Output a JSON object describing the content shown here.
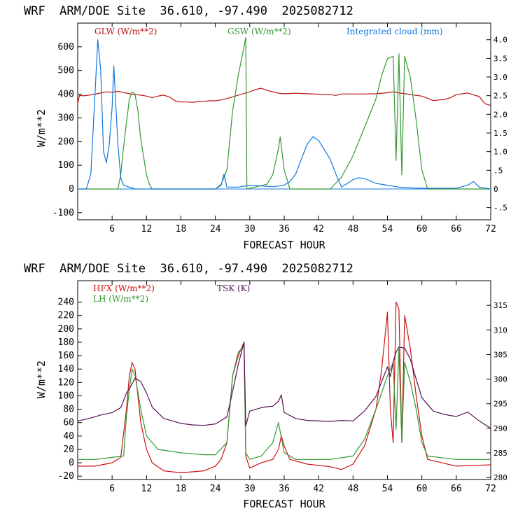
{
  "chart_data": [
    {
      "type": "line",
      "title": "WRF  ARM/DOE Site  36.610, -97.490  2025082712",
      "xlabel": "FORECAST HOUR",
      "ylabel": "W/m**2",
      "xlim": [
        0,
        72
      ],
      "ylim": [
        -130,
        700
      ],
      "y2lim": [
        -0.826,
        4.445
      ],
      "x_ticks": [
        6,
        12,
        18,
        24,
        30,
        36,
        42,
        48,
        54,
        60,
        66,
        72
      ],
      "y_ticks": [
        -100,
        0,
        100,
        200,
        300,
        400,
        500,
        600
      ],
      "y2_ticks": [
        -0.5,
        0,
        0.5,
        1.0,
        1.5,
        2.0,
        2.5,
        3.0,
        3.5,
        4.0
      ],
      "y2_tick_labels": [
        "-.5",
        "0",
        ".5",
        "1.0",
        "1.5",
        "2.0",
        "2.5",
        "3.0",
        "3.5",
        "4.0"
      ],
      "zero_line": 0,
      "series": [
        {
          "name": "GLW (W/m**2)",
          "color": "#bb1111",
          "axis": "left",
          "x": [
            0,
            0.3,
            1,
            2,
            3,
            4,
            5,
            6,
            7,
            8,
            9,
            10,
            11,
            12,
            13,
            14,
            15,
            16,
            17,
            18,
            19,
            20,
            21,
            22,
            23,
            24,
            25,
            26,
            27,
            28,
            29,
            30,
            31,
            32,
            33,
            34,
            35,
            36,
            38,
            40,
            42,
            44,
            45,
            46,
            48,
            50,
            52,
            54,
            55,
            56,
            57,
            58,
            60,
            62,
            64,
            65,
            66,
            68,
            70,
            71,
            72
          ],
          "y": [
            360,
            395,
            393,
            396,
            400,
            405,
            410,
            408,
            412,
            407,
            402,
            398,
            396,
            392,
            385,
            392,
            396,
            388,
            372,
            367,
            367,
            366,
            368,
            370,
            372,
            372,
            376,
            382,
            388,
            396,
            403,
            410,
            420,
            425,
            416,
            410,
            404,
            402,
            404,
            402,
            400,
            398,
            395,
            401,
            401,
            401,
            402,
            406,
            410,
            405,
            403,
            398,
            392,
            373,
            378,
            385,
            398,
            405,
            390,
            360,
            352
          ]
        },
        {
          "name": "GSW (W/m**2)",
          "color": "#339933",
          "axis": "left",
          "x": [
            0,
            7,
            7.5,
            8,
            9,
            9.5,
            10,
            10.5,
            11,
            12,
            12.5,
            13,
            24,
            25,
            26,
            27,
            28,
            29,
            29.3,
            29.5,
            33,
            34,
            35,
            35.3,
            36,
            37,
            44,
            46,
            48,
            50,
            52,
            53,
            54,
            55,
            55.5,
            56,
            56.5,
            57,
            58,
            59,
            60,
            61,
            72
          ],
          "y": [
            0,
            0,
            60,
            180,
            380,
            410,
            400,
            330,
            210,
            60,
            20,
            0,
            0,
            20,
            80,
            330,
            480,
            600,
            640,
            0,
            20,
            60,
            170,
            220,
            80,
            0,
            0,
            50,
            140,
            260,
            380,
            480,
            550,
            560,
            120,
            570,
            60,
            560,
            470,
            290,
            80,
            0,
            0
          ]
        },
        {
          "name": "Integrated cloud (mm)",
          "color": "#1177dd",
          "axis": "right",
          "x": [
            0,
            1.5,
            2.3,
            3,
            3.5,
            4,
            4.5,
            5,
            5.5,
            6,
            6.3,
            6.6,
            7,
            7.5,
            8,
            9,
            10,
            24,
            25,
            25.5,
            26,
            28,
            30,
            32,
            34,
            36,
            37,
            38,
            39,
            40,
            41,
            42,
            43,
            44,
            45,
            46,
            47,
            48,
            49,
            50,
            52,
            54,
            56,
            58,
            60,
            62,
            66,
            68,
            69,
            70,
            72
          ],
          "y": [
            0,
            0,
            0.4,
            2.5,
            4.0,
            3.2,
            1.0,
            0.7,
            1.2,
            2.2,
            3.3,
            2.4,
            1.2,
            0.3,
            0.1,
            0.05,
            0,
            0,
            0.1,
            0.4,
            0.05,
            0.05,
            0.1,
            0.08,
            0.06,
            0.1,
            0.2,
            0.4,
            0.8,
            1.2,
            1.4,
            1.3,
            1.05,
            0.8,
            0.4,
            0.05,
            0.15,
            0.25,
            0.3,
            0.28,
            0.15,
            0.1,
            0.05,
            0.03,
            0.02,
            0.02,
            0.02,
            0.1,
            0.2,
            0.05,
            0
          ]
        }
      ]
    },
    {
      "type": "line",
      "title": "WRF  ARM/DOE Site  36.610, -97.490  2025082712",
      "xlabel": "FORECAST HOUR",
      "ylabel": "W/m**2",
      "xlim": [
        0,
        72
      ],
      "ylim": [
        -25,
        272
      ],
      "y2lim": [
        279.6,
        320.0
      ],
      "x_ticks": [
        6,
        12,
        18,
        24,
        30,
        36,
        42,
        48,
        54,
        60,
        66,
        72
      ],
      "y_ticks": [
        -20,
        0,
        20,
        40,
        60,
        80,
        100,
        120,
        140,
        160,
        180,
        200,
        220,
        240
      ],
      "y2_ticks": [
        280,
        285,
        290,
        295,
        300,
        305,
        310,
        315
      ],
      "y2_tick_labels": [
        "280",
        "285",
        "290",
        "295",
        "300",
        "305",
        "310",
        "315"
      ],
      "series": [
        {
          "name": "HFX (W/m**2)",
          "color": "#cc1111",
          "axis": "left",
          "x": [
            0,
            3,
            6,
            7.5,
            8.5,
            9,
            9.5,
            10,
            10.5,
            11,
            12,
            13,
            15,
            18,
            22,
            24,
            25,
            26,
            27,
            28,
            29,
            29.3,
            30,
            32,
            34,
            35,
            35.5,
            36,
            37,
            40,
            44,
            46,
            48,
            50,
            52,
            53,
            54,
            54.5,
            55,
            55.5,
            56,
            56.5,
            57,
            58,
            59,
            60,
            61,
            66,
            72
          ],
          "y": [
            -5,
            -5,
            0,
            8,
            80,
            130,
            150,
            140,
            100,
            60,
            20,
            0,
            -12,
            -15,
            -12,
            -5,
            5,
            30,
            130,
            160,
            180,
            10,
            -8,
            0,
            5,
            20,
            40,
            25,
            5,
            -2,
            -6,
            -10,
            -2,
            25,
            80,
            140,
            225,
            80,
            30,
            240,
            230,
            30,
            220,
            170,
            100,
            40,
            5,
            -5,
            -3
          ]
        },
        {
          "name": "LH (W/m**2)",
          "color": "#339933",
          "axis": "left",
          "x": [
            0,
            3,
            6,
            8,
            8.5,
            9,
            9.5,
            10,
            11,
            12,
            14,
            18,
            22,
            24,
            26,
            27,
            28,
            29,
            29.3,
            30,
            32,
            34,
            35,
            36,
            38,
            44,
            48,
            50,
            52,
            54,
            55,
            55.5,
            56,
            56.5,
            57,
            58,
            59,
            60,
            61,
            66,
            72
          ],
          "y": [
            5,
            5,
            8,
            10,
            70,
            110,
            140,
            130,
            80,
            40,
            20,
            15,
            12,
            12,
            30,
            130,
            165,
            175,
            15,
            5,
            10,
            30,
            60,
            15,
            5,
            5,
            10,
            35,
            80,
            130,
            150,
            50,
            170,
            30,
            150,
            120,
            80,
            30,
            10,
            5,
            5
          ]
        },
        {
          "name": "TSK (K)",
          "color": "#551155",
          "axis": "right",
          "x": [
            0,
            2,
            4,
            6,
            7.5,
            8.5,
            9,
            10,
            11,
            12,
            13,
            15,
            18,
            20,
            22,
            24,
            26,
            27,
            28,
            29,
            29.3,
            30,
            32,
            33,
            34,
            35,
            35.5,
            36,
            38,
            40,
            44,
            46,
            48,
            50,
            52,
            53,
            54,
            54.5,
            55,
            55.5,
            56,
            57,
            58,
            59,
            60,
            62,
            64,
            66,
            68,
            70,
            72
          ],
          "y": [
            291.5,
            292.0,
            292.7,
            293.2,
            294.2,
            297.2,
            298.0,
            300.2,
            299.5,
            297.2,
            294.3,
            292.0,
            291.0,
            290.7,
            290.6,
            290.9,
            292.3,
            297.5,
            303.0,
            307.5,
            290.5,
            293.5,
            294.2,
            294.4,
            294.5,
            295.5,
            296.8,
            293.2,
            292.0,
            291.6,
            291.4,
            291.6,
            291.5,
            293.5,
            296.5,
            299.5,
            302.5,
            300.5,
            303.5,
            305.5,
            306.5,
            306.3,
            304.0,
            300.0,
            296.2,
            293.5,
            292.8,
            292.4,
            293.3,
            291.5,
            290.0
          ]
        }
      ]
    }
  ]
}
